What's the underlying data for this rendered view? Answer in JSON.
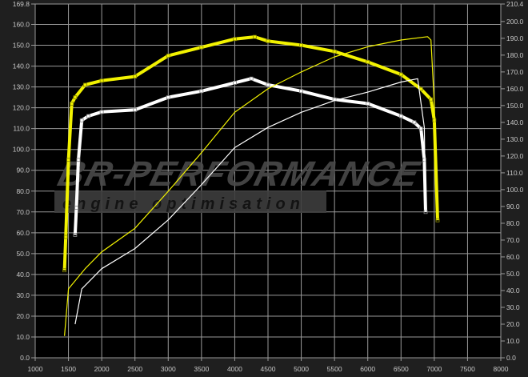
{
  "chart_data": {
    "type": "line",
    "title": "",
    "xlabel": "",
    "ylabel_left": "",
    "ylabel_right": "",
    "xlim": [
      1000,
      8000
    ],
    "ylim_left": [
      0,
      169.8
    ],
    "ylim_right": [
      0,
      210.4
    ],
    "grid": true,
    "x_ticks": [
      "1000",
      "1500",
      "2000",
      "2500",
      "3000",
      "3500",
      "4000",
      "4500",
      "5000",
      "5500",
      "6000",
      "6500",
      "7000",
      "7500",
      "8000"
    ],
    "y_left_ticks": [
      "0.0",
      "10.0",
      "20.0",
      "30.0",
      "40.0",
      "50.0",
      "60.0",
      "70.0",
      "80.0",
      "90.0",
      "100.0",
      "110.0",
      "120.0",
      "130.0",
      "140.0",
      "150.0",
      "160.0",
      "169.8"
    ],
    "y_right_ticks": [
      "0.0",
      "10.0",
      "20.0",
      "30.0",
      "40.0",
      "50.0",
      "60.0",
      "70.0",
      "80.0",
      "90.0",
      "100.0",
      "110.0",
      "120.0",
      "130.0",
      "140.0",
      "150.0",
      "160.0",
      "170.0",
      "180.0",
      "190.0",
      "200.0",
      "210.4"
    ],
    "series": [
      {
        "axis": "left",
        "color": "#f2f200",
        "style": "thick-markers",
        "x": [
          1440,
          1460,
          1500,
          1550,
          1600,
          1750,
          2000,
          2500,
          3000,
          3500,
          4000,
          4300,
          4500,
          5000,
          5500,
          6000,
          6500,
          6800,
          6950,
          7000,
          7050
        ],
        "y": [
          42,
          58,
          95,
          122,
          125,
          131,
          133,
          135,
          145,
          149,
          153,
          154,
          152,
          150,
          147,
          142,
          136,
          129,
          124,
          114,
          66
        ]
      },
      {
        "axis": "left",
        "color": "#ffffff",
        "style": "thick-markers",
        "x": [
          1600,
          1620,
          1650,
          1700,
          1800,
          2000,
          2500,
          3000,
          3500,
          4000,
          4250,
          4500,
          5000,
          5500,
          6000,
          6500,
          6700,
          6800,
          6850,
          6870
        ],
        "y": [
          59,
          72,
          95,
          114,
          116,
          118,
          119,
          125,
          128,
          132,
          134,
          131,
          128,
          124,
          122,
          116,
          113,
          110,
          95,
          70
        ]
      },
      {
        "axis": "right",
        "color": "#f2f200",
        "style": "thin",
        "x": [
          1440,
          1500,
          1750,
          2000,
          2500,
          3000,
          3500,
          4000,
          4500,
          5000,
          5500,
          6000,
          6500,
          6900,
          6950,
          7000,
          7050
        ],
        "y": [
          13,
          41,
          53,
          63,
          77,
          99,
          122,
          146,
          160,
          170,
          179,
          185,
          189,
          191,
          189,
          151,
          84
        ]
      },
      {
        "axis": "right",
        "color": "#ffffff",
        "style": "thin",
        "x": [
          1600,
          1700,
          2000,
          2500,
          3000,
          3500,
          4000,
          4500,
          5000,
          5500,
          6000,
          6500,
          6750,
          6850,
          6870
        ],
        "y": [
          20,
          41,
          53,
          65,
          82,
          103,
          125,
          137,
          146,
          153,
          158,
          164,
          166,
          137,
          87
        ]
      }
    ]
  },
  "watermark": {
    "line1": "BR-Performance",
    "line2": "engine optimisation"
  }
}
